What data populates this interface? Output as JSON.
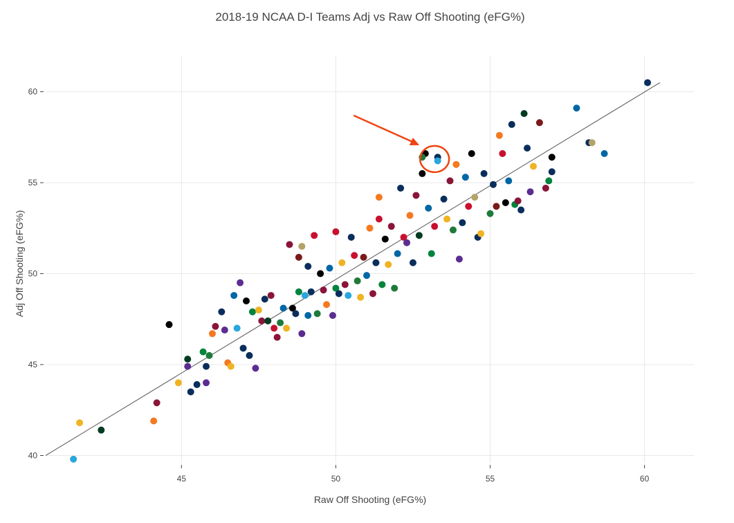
{
  "chart_data": {
    "type": "scatter",
    "title": "2018-19 NCAA D-I Teams Adj vs Raw Off Shooting (eFG%)",
    "xlabel": "Raw Off Shooting (eFG%)",
    "ylabel": "Adj Off Shooting (eFG%)",
    "xlim": [
      40.6,
      61.6
    ],
    "ylim": [
      39.6,
      62.0
    ],
    "xticks": [
      45,
      50,
      55,
      60
    ],
    "yticks": [
      40,
      45,
      50,
      55,
      60
    ],
    "grid": true,
    "legend": "none",
    "trend_line": {
      "x": [
        40.6,
        60.5
      ],
      "y": [
        40.0,
        60.5
      ]
    },
    "annotation": {
      "kind": "arrow-and-circle",
      "target": {
        "x": 53.2,
        "y": 56.3
      },
      "color": "#ee4411"
    },
    "palette": [
      "#0a2e5c",
      "#c8102e",
      "#8a1538",
      "#f47920",
      "#f0b323",
      "#0067a5",
      "#1f7a3a",
      "#5c2d91",
      "#000000",
      "#2aa7dc",
      "#7a1a1a",
      "#003b22",
      "#a7a9ac",
      "#b3a369",
      "#00843d",
      "#ff6600"
    ],
    "points": [
      [
        41.5,
        39.8,
        9
      ],
      [
        41.7,
        41.8,
        4
      ],
      [
        42.4,
        41.4,
        11
      ],
      [
        44.1,
        41.9,
        3
      ],
      [
        44.2,
        42.9,
        2
      ],
      [
        44.6,
        47.2,
        8
      ],
      [
        44.9,
        44.0,
        4
      ],
      [
        45.2,
        45.3,
        11
      ],
      [
        45.2,
        44.9,
        7
      ],
      [
        45.3,
        43.5,
        0
      ],
      [
        45.5,
        43.9,
        0
      ],
      [
        45.7,
        45.7,
        14
      ],
      [
        45.8,
        44.0,
        7
      ],
      [
        45.8,
        44.9,
        0
      ],
      [
        45.9,
        45.5,
        6
      ],
      [
        46.0,
        46.7,
        3
      ],
      [
        46.1,
        47.1,
        2
      ],
      [
        46.3,
        47.9,
        0
      ],
      [
        46.4,
        46.9,
        7
      ],
      [
        46.5,
        45.1,
        3
      ],
      [
        46.6,
        44.9,
        4
      ],
      [
        46.7,
        48.8,
        5
      ],
      [
        46.8,
        47.0,
        9
      ],
      [
        46.9,
        49.5,
        7
      ],
      [
        47.0,
        45.9,
        0
      ],
      [
        47.1,
        48.5,
        8
      ],
      [
        47.2,
        45.5,
        0
      ],
      [
        47.3,
        47.9,
        14
      ],
      [
        47.4,
        44.8,
        7
      ],
      [
        47.5,
        48.0,
        4
      ],
      [
        47.6,
        47.4,
        2
      ],
      [
        47.7,
        48.6,
        0
      ],
      [
        47.8,
        47.4,
        11
      ],
      [
        47.9,
        48.8,
        2
      ],
      [
        48.0,
        47.0,
        1
      ],
      [
        48.1,
        46.5,
        2
      ],
      [
        48.2,
        47.3,
        6
      ],
      [
        48.3,
        48.1,
        5
      ],
      [
        48.4,
        47.0,
        4
      ],
      [
        48.5,
        51.6,
        2
      ],
      [
        48.6,
        48.1,
        8
      ],
      [
        48.7,
        47.8,
        0
      ],
      [
        48.8,
        49.0,
        14
      ],
      [
        48.8,
        50.9,
        10
      ],
      [
        48.9,
        46.7,
        7
      ],
      [
        48.9,
        51.5,
        13
      ],
      [
        49.0,
        48.8,
        9
      ],
      [
        49.1,
        47.7,
        5
      ],
      [
        49.1,
        50.4,
        0
      ],
      [
        49.2,
        49.0,
        0
      ],
      [
        49.3,
        52.1,
        1
      ],
      [
        49.4,
        47.8,
        6
      ],
      [
        49.5,
        50.0,
        8
      ],
      [
        49.6,
        49.1,
        2
      ],
      [
        49.7,
        48.3,
        3
      ],
      [
        49.8,
        50.3,
        5
      ],
      [
        49.9,
        47.7,
        7
      ],
      [
        50.0,
        49.2,
        14
      ],
      [
        50.0,
        52.3,
        1
      ],
      [
        50.1,
        48.9,
        0
      ],
      [
        50.2,
        50.6,
        4
      ],
      [
        50.3,
        49.4,
        2
      ],
      [
        50.4,
        48.8,
        9
      ],
      [
        50.5,
        52.0,
        0
      ],
      [
        50.6,
        51.0,
        1
      ],
      [
        50.7,
        49.6,
        6
      ],
      [
        50.8,
        48.7,
        4
      ],
      [
        50.9,
        50.9,
        10
      ],
      [
        51.0,
        49.9,
        5
      ],
      [
        51.1,
        52.5,
        3
      ],
      [
        51.2,
        48.9,
        2
      ],
      [
        51.3,
        50.6,
        0
      ],
      [
        51.4,
        53.0,
        1
      ],
      [
        51.4,
        54.2,
        3
      ],
      [
        51.5,
        49.4,
        14
      ],
      [
        51.6,
        51.9,
        8
      ],
      [
        51.7,
        50.5,
        4
      ],
      [
        51.8,
        52.6,
        2
      ],
      [
        51.9,
        49.2,
        6
      ],
      [
        52.0,
        51.1,
        5
      ],
      [
        52.1,
        54.7,
        0
      ],
      [
        52.2,
        52.0,
        1
      ],
      [
        52.3,
        51.7,
        7
      ],
      [
        52.4,
        53.2,
        3
      ],
      [
        52.5,
        50.6,
        0
      ],
      [
        52.6,
        54.3,
        2
      ],
      [
        52.7,
        52.1,
        11
      ],
      [
        52.8,
        55.5,
        8
      ],
      [
        52.9,
        56.6,
        8
      ],
      [
        52.8,
        56.4,
        6
      ],
      [
        53.0,
        53.6,
        5
      ],
      [
        53.1,
        51.1,
        14
      ],
      [
        53.2,
        52.6,
        1
      ],
      [
        53.3,
        56.4,
        0
      ],
      [
        53.3,
        56.2,
        9
      ],
      [
        53.5,
        54.1,
        0
      ],
      [
        53.6,
        53.0,
        4
      ],
      [
        53.7,
        55.1,
        2
      ],
      [
        53.8,
        52.4,
        6
      ],
      [
        53.9,
        56.0,
        3
      ],
      [
        54.0,
        50.8,
        7
      ],
      [
        54.1,
        52.8,
        0
      ],
      [
        54.2,
        55.3,
        5
      ],
      [
        54.3,
        53.7,
        1
      ],
      [
        54.4,
        56.6,
        8
      ],
      [
        54.5,
        54.2,
        13
      ],
      [
        54.6,
        52.0,
        0
      ],
      [
        54.7,
        52.2,
        4
      ],
      [
        54.8,
        55.5,
        0
      ],
      [
        55.0,
        53.3,
        6
      ],
      [
        55.1,
        54.9,
        0
      ],
      [
        55.2,
        53.7,
        10
      ],
      [
        55.3,
        57.6,
        3
      ],
      [
        55.4,
        56.6,
        1
      ],
      [
        55.5,
        53.9,
        8
      ],
      [
        55.6,
        55.1,
        5
      ],
      [
        55.7,
        58.2,
        0
      ],
      [
        55.8,
        53.8,
        14
      ],
      [
        55.9,
        54.0,
        2
      ],
      [
        56.0,
        53.5,
        0
      ],
      [
        56.1,
        58.8,
        11
      ],
      [
        56.2,
        56.9,
        0
      ],
      [
        56.3,
        54.5,
        7
      ],
      [
        56.4,
        55.9,
        4
      ],
      [
        56.6,
        58.3,
        10
      ],
      [
        56.8,
        54.7,
        2
      ],
      [
        56.9,
        55.1,
        14
      ],
      [
        57.0,
        56.4,
        8
      ],
      [
        57.0,
        55.6,
        0
      ],
      [
        57.8,
        59.1,
        5
      ],
      [
        58.2,
        57.2,
        0
      ],
      [
        58.3,
        57.2,
        13
      ],
      [
        58.7,
        56.6,
        5
      ],
      [
        60.1,
        60.5,
        0
      ]
    ]
  }
}
